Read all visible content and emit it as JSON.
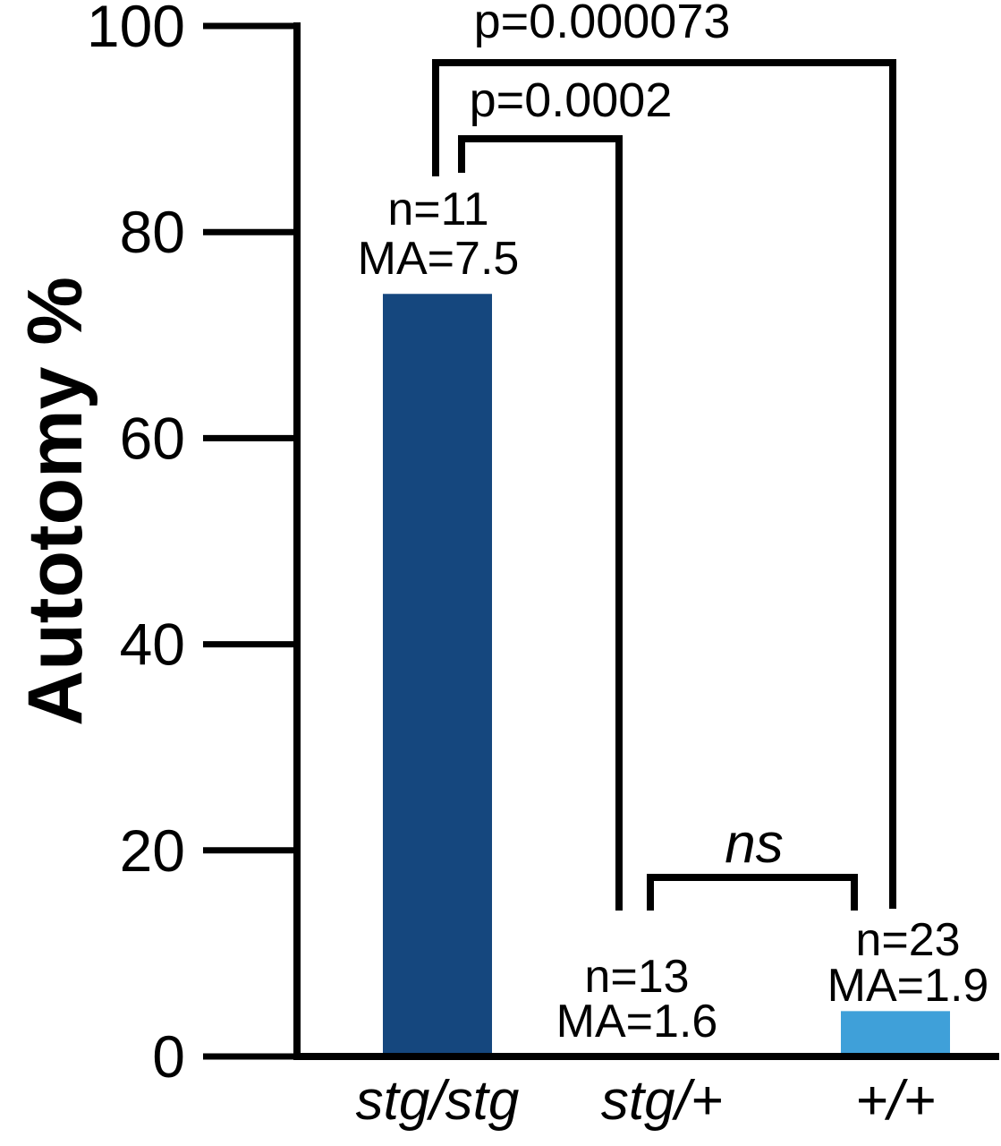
{
  "chart_data": {
    "type": "bar",
    "title": "",
    "ylabel": "Autotomy %",
    "xlabel": "",
    "ylim": [
      0,
      100
    ],
    "yticks": [
      0,
      20,
      40,
      60,
      80,
      100
    ],
    "grid": false,
    "legend": null,
    "background_color": "#ffffff",
    "axis_color": "#000000",
    "categories": [
      "stg/stg",
      "stg/+",
      "+/+"
    ],
    "values": [
      74,
      0,
      4.4
    ],
    "bar_colors": [
      "#15477e",
      "#15477e",
      "#3fa0d9"
    ],
    "bar_annotations": [
      {
        "lines": [
          "n=11",
          "MA=7.5"
        ]
      },
      {
        "lines": [
          "n=13",
          "MA=1.6"
        ]
      },
      {
        "lines": [
          "n=23",
          "MA=1.9"
        ]
      }
    ],
    "significance": [
      {
        "label": "p=0.000073",
        "from": "stg/stg",
        "to": "+/+"
      },
      {
        "label": "p=0.0002",
        "from": "stg/stg",
        "to": "stg/+"
      },
      {
        "label": "ns",
        "from": "stg/+",
        "to": "+/+"
      }
    ]
  }
}
